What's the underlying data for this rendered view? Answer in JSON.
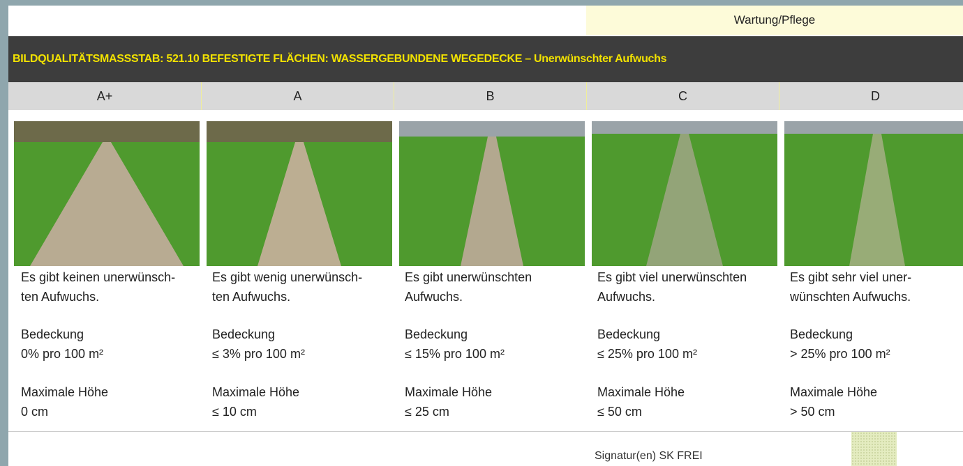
{
  "header": {
    "tab": "Wartung/Pflege",
    "title": "BILDQUALITÄTSMASSSTAB: 521.10 BEFESTIGTE FLÄCHEN:  WASSERGEBUNDENE WEGEDECKE – Unerwünschter Aufwuchs"
  },
  "columns": [
    {
      "grade": "A+",
      "description": [
        "Es gibt keinen unerwünsch-",
        "ten Aufwuchs."
      ],
      "coverage_label": "Bedeckung",
      "coverage": "0% pro 100 m²",
      "height_label": "Maximale Höhe",
      "height": "0 cm"
    },
    {
      "grade": "A",
      "description": [
        "Es gibt wenig unerwünsch-",
        "ten Aufwuchs."
      ],
      "coverage_label": "Bedeckung",
      "coverage": "≤ 3% pro 100 m²",
      "height_label": "Maximale Höhe",
      "height": "≤ 10 cm"
    },
    {
      "grade": "B",
      "description": [
        "Es gibt unerwünschten",
        "Aufwuchs."
      ],
      "coverage_label": "Bedeckung",
      "coverage": "≤ 15% pro 100 m²",
      "height_label": "Maximale Höhe",
      "height": "≤ 25 cm"
    },
    {
      "grade": "C",
      "description": [
        "Es gibt viel unerwünschten",
        "Aufwuchs."
      ],
      "coverage_label": "Bedeckung",
      "coverage": "≤ 25% pro 100 m²",
      "height_label": "Maximale Höhe",
      "height": "≤ 50 cm"
    },
    {
      "grade": "D",
      "description": [
        "Es gibt sehr viel uner-",
        "wünschten Aufwuchs."
      ],
      "coverage_label": "Bedeckung",
      "coverage": "> 25% pro 100 m²",
      "height_label": "Maximale Höhe",
      "height": "> 50 cm"
    }
  ],
  "footer": {
    "signature": "Signatur(en) SK FREI"
  }
}
